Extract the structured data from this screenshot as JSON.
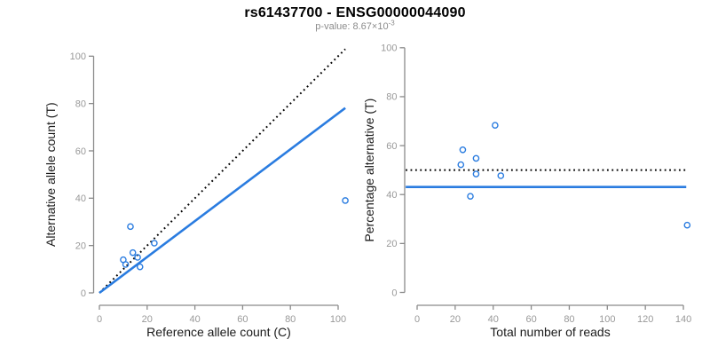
{
  "figure": {
    "title": "rs61437700 - ENSG00000044090",
    "subtitle": {
      "prefix": "p-value: ",
      "mantissa": "8.67×10",
      "exponent": "-3"
    },
    "colors": {
      "accent_blue": "#2a7ce0",
      "dotted_black": "#000000",
      "axis_gray": "#8a8a8a",
      "tick_label_gray": "#999999",
      "axis_title_color": "#1a1a1a",
      "subtitle_gray": "#8c8c8c"
    }
  },
  "chart_data": [
    {
      "type": "scatter",
      "panel": "left",
      "xlabel": "Reference allele count (C)",
      "ylabel": "Alternative allele count (T)",
      "x_ticks": [
        0,
        20,
        40,
        60,
        80,
        100
      ],
      "y_ticks": [
        0,
        20,
        40,
        60,
        80,
        100
      ],
      "xlim": [
        0,
        103
      ],
      "ylim": [
        0,
        103
      ],
      "grid": false,
      "point_style": "open-circle",
      "points": [
        [
          10,
          14
        ],
        [
          11,
          12
        ],
        [
          13,
          28
        ],
        [
          14,
          17
        ],
        [
          16,
          15
        ],
        [
          17,
          11
        ],
        [
          23,
          21
        ],
        [
          103,
          39
        ]
      ],
      "lines": [
        {
          "name": "identity-line",
          "style": "dotted",
          "color": "black",
          "x1": 0,
          "y1": 0,
          "x2": 103,
          "y2": 103
        },
        {
          "name": "fit-line",
          "style": "solid",
          "color": "blue",
          "x1": 0,
          "y1": 0,
          "x2": 103,
          "y2": 78.1
        }
      ]
    },
    {
      "type": "scatter",
      "panel": "right",
      "xlabel": "Total number of reads",
      "ylabel": "Percentage alternative (T)",
      "x_ticks": [
        0,
        20,
        40,
        60,
        80,
        100,
        120,
        140
      ],
      "y_ticks": [
        0,
        20,
        40,
        60,
        80,
        100
      ],
      "xlim": [
        0,
        142
      ],
      "ylim": [
        0,
        100
      ],
      "grid": false,
      "point_style": "open-circle",
      "points": [
        [
          24,
          58.3
        ],
        [
          23,
          52.2
        ],
        [
          41,
          68.3
        ],
        [
          31,
          54.8
        ],
        [
          31,
          48.4
        ],
        [
          28,
          39.3
        ],
        [
          44,
          47.7
        ],
        [
          142,
          27.5
        ]
      ],
      "lines": [
        {
          "name": "expected-50pct-line",
          "style": "dotted",
          "color": "black",
          "x1": -6,
          "y1": 50,
          "x2": 141.5,
          "y2": 50
        },
        {
          "name": "mean-pct-line",
          "style": "solid",
          "color": "blue",
          "x1": -6,
          "y1": 43.1,
          "x2": 141.5,
          "y2": 43.1
        }
      ]
    }
  ]
}
